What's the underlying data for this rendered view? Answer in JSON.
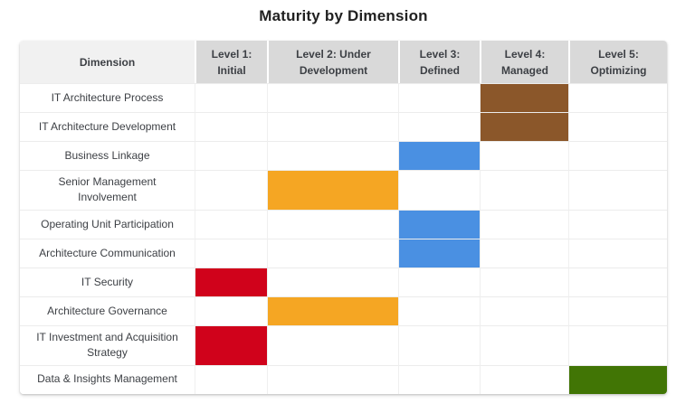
{
  "title": "Maturity by Dimension",
  "level_colors": {
    "1": "#D0021B",
    "2": "#F5A623",
    "3": "#4A90E2",
    "4": "#8B572A",
    "5": "#417505"
  },
  "table": {
    "header": {
      "dimension_label": "Dimension",
      "levels": [
        "Level 1: Initial",
        "Level 2: Under Development",
        "Level 3: Defined",
        "Level 4: Managed",
        "Level 5: Optimizing"
      ]
    },
    "rows": [
      {
        "dimension": "IT Architecture Process",
        "level": 4
      },
      {
        "dimension": "IT Architecture Development",
        "level": 4
      },
      {
        "dimension": "Business Linkage",
        "level": 3
      },
      {
        "dimension": "Senior Management Involvement",
        "level": 2
      },
      {
        "dimension": "Operating Unit Participation",
        "level": 3
      },
      {
        "dimension": "Architecture Communication",
        "level": 3
      },
      {
        "dimension": "IT Security",
        "level": 1
      },
      {
        "dimension": "Architecture Governance",
        "level": 2
      },
      {
        "dimension": "IT Investment and Acquisition Strategy",
        "level": 1
      },
      {
        "dimension": "Data & Insights Management",
        "level": 5
      }
    ]
  },
  "chart_data": {
    "type": "heatmap",
    "title": "Maturity by Dimension",
    "x_categories": [
      "Level 1: Initial",
      "Level 2: Under Development",
      "Level 3: Defined",
      "Level 4: Managed",
      "Level 5: Optimizing"
    ],
    "y_categories": [
      "IT Architecture Process",
      "IT Architecture Development",
      "Business Linkage",
      "Senior Management Involvement",
      "Operating Unit Participation",
      "Architecture Communication",
      "IT Security",
      "Architecture Governance",
      "IT Investment and Acquisition Strategy",
      "Data & Insights Management"
    ],
    "values": [
      {
        "dimension": "IT Architecture Process",
        "level": 4,
        "color": "#8B572A"
      },
      {
        "dimension": "IT Architecture Development",
        "level": 4,
        "color": "#8B572A"
      },
      {
        "dimension": "Business Linkage",
        "level": 3,
        "color": "#4A90E2"
      },
      {
        "dimension": "Senior Management Involvement",
        "level": 2,
        "color": "#F5A623"
      },
      {
        "dimension": "Operating Unit Participation",
        "level": 3,
        "color": "#4A90E2"
      },
      {
        "dimension": "Architecture Communication",
        "level": 3,
        "color": "#4A90E2"
      },
      {
        "dimension": "IT Security",
        "level": 1,
        "color": "#D0021B"
      },
      {
        "dimension": "Architecture Governance",
        "level": 2,
        "color": "#F5A623"
      },
      {
        "dimension": "IT Investment and Acquisition Strategy",
        "level": 1,
        "color": "#D0021B"
      },
      {
        "dimension": "Data & Insights Management",
        "level": 5,
        "color": "#417505"
      }
    ],
    "legend": "none",
    "grid": true
  }
}
